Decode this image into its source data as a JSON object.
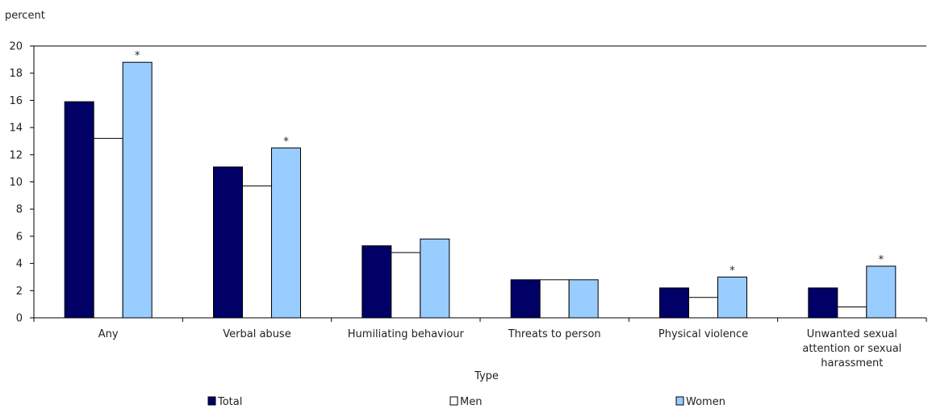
{
  "chart_data": {
    "type": "bar",
    "title": "",
    "ylabel": "percent",
    "xlabel": "Type",
    "ylim": [
      0,
      20
    ],
    "yticks": [
      0,
      2,
      4,
      6,
      8,
      10,
      12,
      14,
      16,
      18,
      20
    ],
    "grid": false,
    "legend_position": "bottom",
    "categories": [
      [
        "Any"
      ],
      [
        "Verbal abuse"
      ],
      [
        "Humiliating behaviour"
      ],
      [
        "Threats to person"
      ],
      [
        "Physical violence"
      ],
      [
        "Unwanted sexual",
        "attention or sexual",
        "harassment"
      ]
    ],
    "series": [
      {
        "name": "Total",
        "color": "#000066",
        "values": [
          15.9,
          11.1,
          5.3,
          2.8,
          2.2,
          2.2
        ]
      },
      {
        "name": "Men",
        "color": "#ffffff",
        "values": [
          13.2,
          9.7,
          4.8,
          2.8,
          1.5,
          0.8
        ]
      },
      {
        "name": "Women",
        "color": "#99ccff",
        "values": [
          18.8,
          12.5,
          5.8,
          2.8,
          3.0,
          3.8
        ]
      }
    ],
    "significance_marker": "*",
    "significant": [
      [
        false,
        false,
        true
      ],
      [
        false,
        false,
        true
      ],
      [
        false,
        false,
        false
      ],
      [
        false,
        false,
        false
      ],
      [
        false,
        false,
        true
      ],
      [
        false,
        false,
        true
      ]
    ]
  }
}
